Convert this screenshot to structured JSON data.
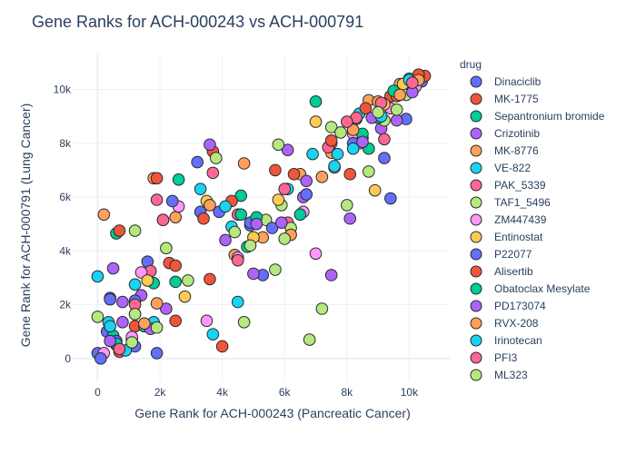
{
  "chart_data": {
    "type": "scatter",
    "title": "Gene Ranks for ACH-000243 vs ACH-000791",
    "xlabel": "Gene Rank for ACH-000243 (Pancreatic Cancer)",
    "ylabel": "Gene Rank for ACH-000791 (Lung Cancer)",
    "xlim": [
      -800,
      11300
    ],
    "ylim": [
      -850,
      11300
    ],
    "xticks": [
      0,
      2000,
      4000,
      6000,
      8000,
      10000
    ],
    "xtick_labels": [
      "0",
      "2k",
      "4k",
      "6k",
      "8k",
      "10k"
    ],
    "yticks": [
      0,
      2000,
      4000,
      6000,
      8000,
      10000
    ],
    "ytick_labels": [
      "0",
      "2k",
      "4k",
      "6k",
      "8k",
      "10k"
    ],
    "grid": true,
    "legend": {
      "title": "drug",
      "placement": "right"
    },
    "series": [
      {
        "name": "Dinaciclib",
        "color": "#636efa",
        "points": [
          [
            0,
            200
          ],
          [
            300,
            1000
          ],
          [
            400,
            2250
          ],
          [
            1200,
            450
          ],
          [
            1600,
            3600
          ],
          [
            3200,
            7300
          ],
          [
            3900,
            5450
          ],
          [
            4900,
            4950
          ],
          [
            5300,
            3100
          ],
          [
            10400,
            10300
          ],
          [
            8300,
            8900
          ],
          [
            10200,
            10300
          ]
        ]
      },
      {
        "name": "MK-1775",
        "color": "#EF553B",
        "points": [
          [
            700,
            250
          ],
          [
            1200,
            1200
          ],
          [
            2300,
            3550
          ],
          [
            2500,
            1400
          ],
          [
            3600,
            2950
          ],
          [
            4000,
            450
          ],
          [
            3700,
            7700
          ],
          [
            5700,
            7000
          ],
          [
            7500,
            8000
          ],
          [
            8100,
            6850
          ],
          [
            9400,
            9750
          ],
          [
            10500,
            10500
          ]
        ]
      },
      {
        "name": "Sepantronium bromide",
        "color": "#00cc96",
        "points": [
          [
            500,
            850
          ],
          [
            600,
            4650
          ],
          [
            1100,
            700
          ],
          [
            1800,
            2800
          ],
          [
            4600,
            6050
          ],
          [
            4800,
            4150
          ],
          [
            7000,
            9550
          ],
          [
            8500,
            8200
          ],
          [
            8700,
            7800
          ],
          [
            9600,
            9950
          ],
          [
            10000,
            10200
          ]
        ]
      },
      {
        "name": "Crizotinib",
        "color": "#ab63fa",
        "points": [
          [
            500,
            3350
          ],
          [
            800,
            1350
          ],
          [
            1400,
            2350
          ],
          [
            2100,
            5150
          ],
          [
            3600,
            7950
          ],
          [
            5000,
            3150
          ],
          [
            6100,
            7750
          ],
          [
            6600,
            6000
          ],
          [
            7500,
            3100
          ],
          [
            8100,
            5200
          ],
          [
            9100,
            8550
          ],
          [
            9800,
            10150
          ]
        ]
      },
      {
        "name": "MK-8776",
        "color": "#FFA15A",
        "points": [
          [
            200,
            5350
          ],
          [
            1800,
            6700
          ],
          [
            2500,
            5250
          ],
          [
            4400,
            3850
          ],
          [
            5300,
            4500
          ],
          [
            6500,
            6850
          ],
          [
            7500,
            7650
          ],
          [
            8700,
            9600
          ],
          [
            9700,
            10200
          ]
        ]
      },
      {
        "name": "VE-822",
        "color": "#19d3f3",
        "points": [
          [
            0,
            3050
          ],
          [
            350,
            1350
          ],
          [
            1200,
            2750
          ],
          [
            1800,
            1350
          ],
          [
            3700,
            900
          ],
          [
            4300,
            4900
          ],
          [
            6900,
            7600
          ],
          [
            7700,
            7600
          ],
          [
            8400,
            9100
          ],
          [
            10000,
            10400
          ]
        ]
      },
      {
        "name": "PAK_5339",
        "color": "#FF6692",
        "points": [
          [
            1200,
            1650
          ],
          [
            1700,
            3250
          ],
          [
            2100,
            5150
          ],
          [
            3700,
            6900
          ],
          [
            4500,
            5350
          ],
          [
            6100,
            5050
          ],
          [
            7400,
            7850
          ],
          [
            8300,
            8950
          ],
          [
            9200,
            8150
          ],
          [
            9900,
            9850
          ]
        ]
      },
      {
        "name": "TAF1_5496",
        "color": "#B6E880",
        "points": [
          [
            0,
            1550
          ],
          [
            1200,
            4750
          ],
          [
            2200,
            4100
          ],
          [
            3800,
            7450
          ],
          [
            4700,
            1350
          ],
          [
            5400,
            5150
          ],
          [
            5900,
            5700
          ],
          [
            5800,
            7950
          ],
          [
            6200,
            4850
          ],
          [
            7600,
            7100
          ],
          [
            8700,
            6950
          ],
          [
            9200,
            8850
          ],
          [
            9900,
            9800
          ]
        ]
      },
      {
        "name": "ZM447439",
        "color": "#FF97FF",
        "points": [
          [
            200,
            200
          ],
          [
            1100,
            800
          ],
          [
            1400,
            3200
          ],
          [
            2600,
            5650
          ],
          [
            3500,
            1400
          ],
          [
            4500,
            3750
          ],
          [
            6600,
            5450
          ],
          [
            7000,
            3900
          ],
          [
            8200,
            8350
          ],
          [
            9400,
            9300
          ],
          [
            10200,
            10100
          ]
        ]
      },
      {
        "name": "Entinostat",
        "color": "#FECB52",
        "points": [
          [
            600,
            500
          ],
          [
            1600,
            2900
          ],
          [
            2800,
            2300
          ],
          [
            3500,
            5850
          ],
          [
            5000,
            4500
          ],
          [
            5800,
            5900
          ],
          [
            7000,
            8800
          ],
          [
            8400,
            8000
          ],
          [
            8900,
            6250
          ],
          [
            9200,
            9450
          ],
          [
            9800,
            10200
          ]
        ]
      },
      {
        "name": "P22077",
        "color": "#636efa",
        "points": [
          [
            100,
            0
          ],
          [
            600,
            650
          ],
          [
            400,
            2200
          ],
          [
            1200,
            2150
          ],
          [
            1900,
            200
          ],
          [
            2400,
            5850
          ],
          [
            3300,
            5450
          ],
          [
            4900,
            5050
          ],
          [
            5600,
            4850
          ],
          [
            6700,
            6100
          ],
          [
            8200,
            8000
          ],
          [
            9200,
            7450
          ],
          [
            9400,
            5950
          ],
          [
            9900,
            8900
          ],
          [
            10300,
            10450
          ]
        ]
      },
      {
        "name": "Alisertib",
        "color": "#EF553B",
        "points": [
          [
            700,
            4750
          ],
          [
            1900,
            6700
          ],
          [
            2500,
            3450
          ],
          [
            3400,
            5200
          ],
          [
            4300,
            5850
          ],
          [
            6300,
            6850
          ],
          [
            7500,
            8100
          ],
          [
            8600,
            9300
          ],
          [
            9600,
            9750
          ],
          [
            10300,
            10550
          ]
        ]
      },
      {
        "name": "Obatoclax Mesylate",
        "color": "#00cc96",
        "points": [
          [
            600,
            550
          ],
          [
            1500,
            1200
          ],
          [
            2600,
            6650
          ],
          [
            2500,
            2850
          ],
          [
            4600,
            5350
          ],
          [
            5100,
            5250
          ],
          [
            6500,
            5350
          ],
          [
            8500,
            8350
          ],
          [
            9000,
            8950
          ],
          [
            9500,
            9950
          ]
        ]
      },
      {
        "name": "PD173074",
        "color": "#ab63fa",
        "points": [
          [
            400,
            650
          ],
          [
            800,
            2100
          ],
          [
            1700,
            1100
          ],
          [
            2200,
            1850
          ],
          [
            4100,
            4400
          ],
          [
            5100,
            5000
          ],
          [
            5900,
            5050
          ],
          [
            6700,
            6600
          ],
          [
            8500,
            8050
          ],
          [
            8800,
            8950
          ],
          [
            9600,
            8850
          ],
          [
            10100,
            9900
          ]
        ]
      },
      {
        "name": "RVX-208",
        "color": "#FFA15A",
        "points": [
          [
            1500,
            1300
          ],
          [
            1900,
            2050
          ],
          [
            3600,
            5700
          ],
          [
            4700,
            7250
          ],
          [
            6200,
            4600
          ],
          [
            7200,
            6750
          ],
          [
            8200,
            8500
          ],
          [
            9000,
            9550
          ],
          [
            9700,
            9800
          ],
          [
            10300,
            10350
          ]
        ]
      },
      {
        "name": "Irinotecan",
        "color": "#19d3f3",
        "points": [
          [
            400,
            1200
          ],
          [
            900,
            300
          ],
          [
            3300,
            6300
          ],
          [
            4100,
            5650
          ],
          [
            4500,
            2100
          ],
          [
            6100,
            6300
          ],
          [
            7600,
            7150
          ],
          [
            8200,
            7800
          ],
          [
            9100,
            9000
          ],
          [
            10000,
            10350
          ]
        ]
      },
      {
        "name": "PFI3",
        "color": "#FF6692",
        "points": [
          [
            700,
            350
          ],
          [
            1200,
            2000
          ],
          [
            1900,
            5900
          ],
          [
            4500,
            3650
          ],
          [
            6000,
            6300
          ],
          [
            8000,
            8800
          ],
          [
            9100,
            9500
          ],
          [
            10100,
            10250
          ]
        ]
      },
      {
        "name": "ML323",
        "color": "#B6E880",
        "points": [
          [
            1100,
            600
          ],
          [
            1200,
            1650
          ],
          [
            1900,
            1150
          ],
          [
            2900,
            2900
          ],
          [
            4400,
            4700
          ],
          [
            4900,
            4200
          ],
          [
            5700,
            3300
          ],
          [
            6000,
            4450
          ],
          [
            6800,
            700
          ],
          [
            7200,
            1850
          ],
          [
            7500,
            8600
          ],
          [
            7800,
            8400
          ],
          [
            8000,
            5700
          ],
          [
            9000,
            9150
          ],
          [
            9600,
            9250
          ]
        ]
      }
    ]
  }
}
